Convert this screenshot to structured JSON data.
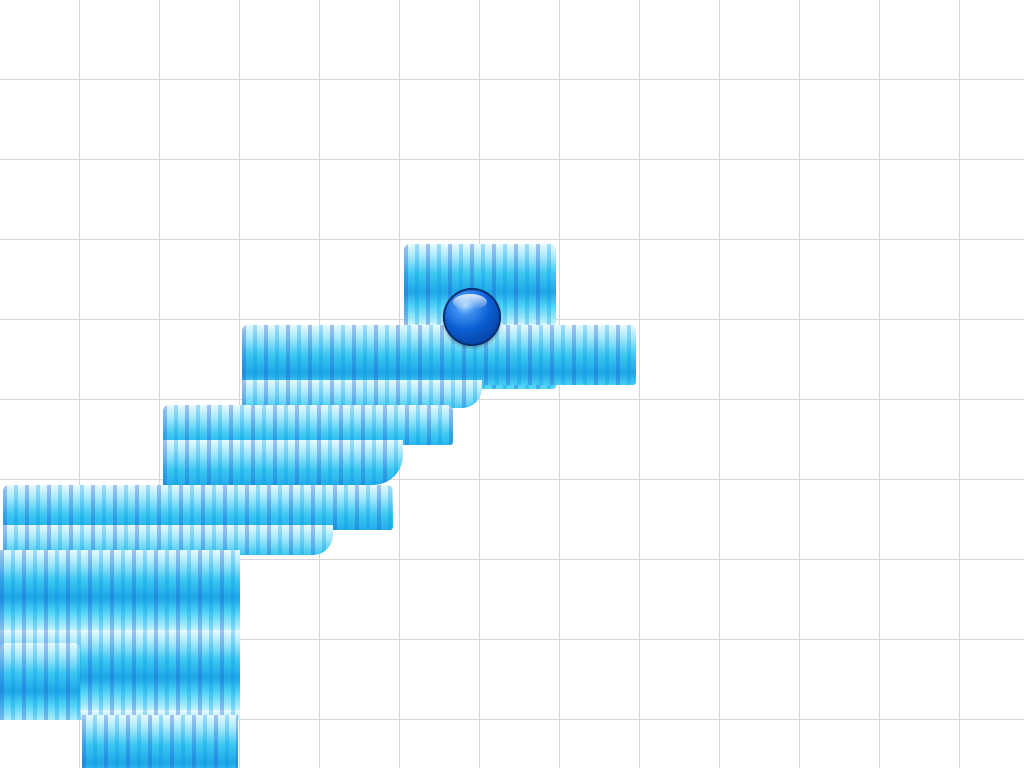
{
  "game": {
    "colors": {
      "background": "#ffffff",
      "grid": "#d6d6d6",
      "water_light": "#bff2ff",
      "water_mid": "#3cc8f2",
      "water_dark": "#1f5fd0",
      "ball": "#0b5fd4"
    },
    "icons": {
      "player": "blue-glass-ball",
      "terrain": "water-tile"
    }
  }
}
